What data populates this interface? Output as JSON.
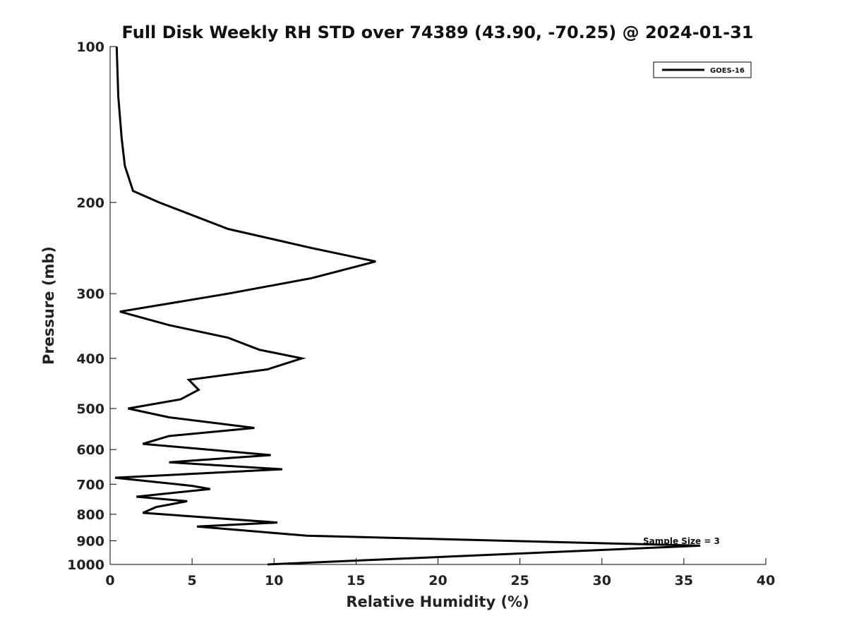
{
  "chart_data": {
    "type": "line",
    "title": "Full Disk Weekly RH STD over 74389 (43.90, -70.25) @ 2024-01-31",
    "xlabel": "Relative Humidity (%)",
    "ylabel": "Pressure (mb)",
    "xlim": [
      0,
      40
    ],
    "ylim": [
      1000,
      100
    ],
    "yscale": "log",
    "grid": false,
    "legend_position": "top-right",
    "x_ticks": [
      0,
      5,
      10,
      15,
      20,
      25,
      30,
      35,
      40
    ],
    "y_ticks": [
      100,
      200,
      300,
      400,
      500,
      600,
      700,
      800,
      900,
      1000
    ],
    "annotation": "Sample Size = 3",
    "series": [
      {
        "name": "GOES-16",
        "color": "#000000",
        "points": [
          {
            "rh": 0.4,
            "p": 100
          },
          {
            "rh": 0.5,
            "p": 125
          },
          {
            "rh": 0.7,
            "p": 150
          },
          {
            "rh": 0.9,
            "p": 170
          },
          {
            "rh": 1.4,
            "p": 190
          },
          {
            "rh": 3.0,
            "p": 200
          },
          {
            "rh": 7.2,
            "p": 225
          },
          {
            "rh": 12.3,
            "p": 245
          },
          {
            "rh": 16.2,
            "p": 260
          },
          {
            "rh": 12.3,
            "p": 280
          },
          {
            "rh": 7.2,
            "p": 300
          },
          {
            "rh": 0.6,
            "p": 325
          },
          {
            "rh": 3.6,
            "p": 345
          },
          {
            "rh": 7.2,
            "p": 365
          },
          {
            "rh": 9.1,
            "p": 385
          },
          {
            "rh": 11.7,
            "p": 400
          },
          {
            "rh": 9.6,
            "p": 420
          },
          {
            "rh": 4.8,
            "p": 440
          },
          {
            "rh": 5.4,
            "p": 460
          },
          {
            "rh": 4.3,
            "p": 480
          },
          {
            "rh": 1.1,
            "p": 500
          },
          {
            "rh": 3.6,
            "p": 520
          },
          {
            "rh": 8.8,
            "p": 545
          },
          {
            "rh": 3.6,
            "p": 565
          },
          {
            "rh": 2.0,
            "p": 585
          },
          {
            "rh": 9.8,
            "p": 615
          },
          {
            "rh": 3.6,
            "p": 635
          },
          {
            "rh": 10.5,
            "p": 655
          },
          {
            "rh": 0.3,
            "p": 680
          },
          {
            "rh": 5.0,
            "p": 705
          },
          {
            "rh": 6.1,
            "p": 715
          },
          {
            "rh": 1.6,
            "p": 740
          },
          {
            "rh": 4.7,
            "p": 755
          },
          {
            "rh": 2.8,
            "p": 775
          },
          {
            "rh": 2.0,
            "p": 795
          },
          {
            "rh": 10.2,
            "p": 830
          },
          {
            "rh": 5.3,
            "p": 845
          },
          {
            "rh": 12.0,
            "p": 880
          },
          {
            "rh": 36.0,
            "p": 920
          },
          {
            "rh": 9.6,
            "p": 1000
          }
        ]
      }
    ]
  }
}
